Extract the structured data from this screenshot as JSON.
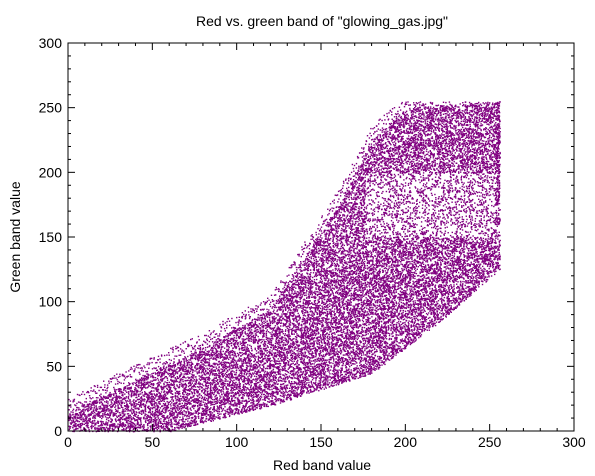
{
  "chart_data": {
    "type": "scatter",
    "title": "Red vs. green band of \"glowing_gas.jpg\"",
    "xlabel": "Red band value",
    "ylabel": "Green band value",
    "xlim": [
      0,
      300
    ],
    "ylim": [
      0,
      300
    ],
    "xticks": [
      0,
      50,
      100,
      150,
      200,
      250,
      300
    ],
    "yticks": [
      0,
      50,
      100,
      150,
      200,
      250,
      300
    ],
    "grid": false,
    "point_color": "#800080",
    "density_regions": [
      {
        "name": "lower-band",
        "x_range": [
          0,
          255
        ],
        "y_lower_at": [
          [
            0,
            0
          ],
          [
            60,
            0
          ],
          [
            120,
            20
          ],
          [
            180,
            45
          ],
          [
            220,
            85
          ],
          [
            255,
            125
          ]
        ],
        "y_upper_at": [
          [
            0,
            15
          ],
          [
            40,
            40
          ],
          [
            80,
            65
          ],
          [
            120,
            95
          ],
          [
            140,
            135
          ],
          [
            160,
            175
          ],
          [
            180,
            225
          ],
          [
            200,
            250
          ],
          [
            255,
            255
          ]
        ]
      },
      {
        "name": "saturated-red-column",
        "x": 255,
        "y_range": [
          160,
          255
        ]
      }
    ]
  }
}
